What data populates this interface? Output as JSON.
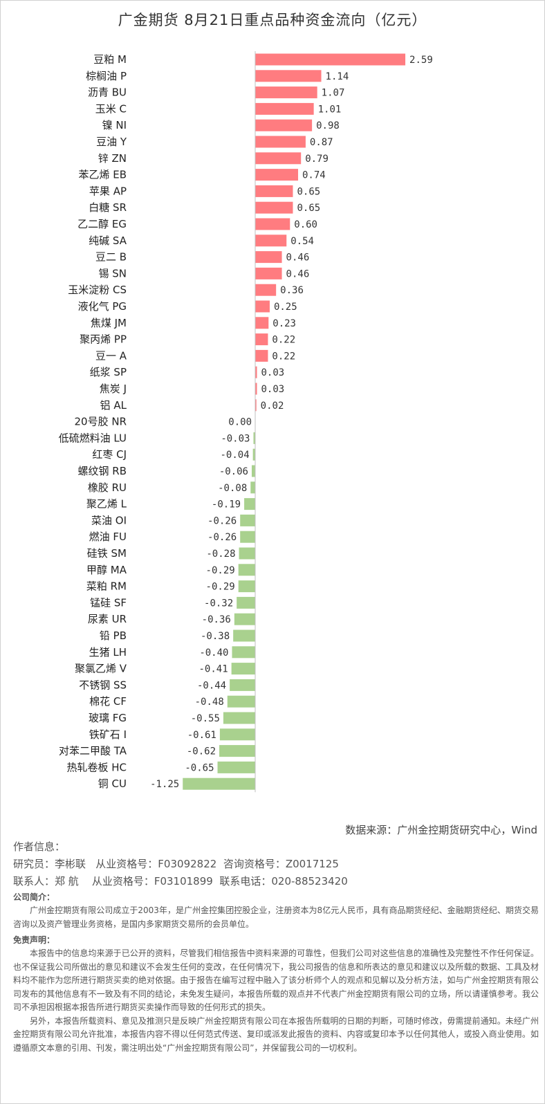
{
  "chart_data": {
    "type": "bar",
    "orientation": "horizontal",
    "title": "广金期货 8月21日重点品种资金流向（亿元）",
    "categories": [
      "豆粕 M",
      "棕榈油 P",
      "沥青 BU",
      "玉米 C",
      "镍 NI",
      "豆油 Y",
      "锌 ZN",
      "苯乙烯 EB",
      "苹果 AP",
      "白糖 SR",
      "乙二醇 EG",
      "纯碱 SA",
      "豆二 B",
      "锡 SN",
      "玉米淀粉 CS",
      "液化气 PG",
      "焦煤 JM",
      "聚丙烯 PP",
      "豆一 A",
      "纸浆 SP",
      "焦炭 J",
      "铝 AL",
      "20号胶 NR",
      "低硫燃料油 LU",
      "红枣 CJ",
      "螺纹钢 RB",
      "橡胶 RU",
      "聚乙烯 L",
      "菜油 OI",
      "燃油 FU",
      "硅铁 SM",
      "甲醇 MA",
      "菜粕 RM",
      "锰硅 SF",
      "尿素 UR",
      "铅 PB",
      "生猪 LH",
      "聚氯乙烯 V",
      "不锈钢 SS",
      "棉花 CF",
      "玻璃 FG",
      "铁矿石 I",
      "对苯二甲酸 TA",
      "热轧卷板 HC",
      "铜 CU"
    ],
    "values": [
      2.59,
      1.14,
      1.07,
      1.01,
      0.98,
      0.87,
      0.79,
      0.74,
      0.65,
      0.65,
      0.6,
      0.54,
      0.46,
      0.46,
      0.36,
      0.25,
      0.23,
      0.22,
      0.22,
      0.03,
      0.03,
      0.02,
      0.0,
      -0.03,
      -0.04,
      -0.06,
      -0.08,
      -0.19,
      -0.26,
      -0.26,
      -0.28,
      -0.29,
      -0.29,
      -0.32,
      -0.36,
      -0.38,
      -0.4,
      -0.41,
      -0.44,
      -0.48,
      -0.55,
      -0.61,
      -0.62,
      -0.65,
      -1.25
    ],
    "colors": {
      "positive": "#ff7c80",
      "negative": "#a9d18e"
    },
    "grid": false
  },
  "source": "数据来源：广州金控期货研究中心，Wind",
  "author": {
    "heading": "作者信息：",
    "line1": "研究员：李彬联   从业资格号：F03092822  咨询资格号：Z0017125",
    "line2": "联系人：郑 航    从业资格号：F03101899  联系电话：020-88523420"
  },
  "company": {
    "heading": "公司简介：",
    "text": "广州金控期货有限公司成立于2003年，是广州金控集团控股企业，注册资本为8亿元人民币，具有商品期货经纪、金融期货经纪、期货交易咨询以及资产管理业务资格，是国内多家期货交易所的会员单位。"
  },
  "disclaimer": {
    "heading": "免责声明：",
    "p1": "本报告中的信息均来源于已公开的资料，尽管我们相信报告中资料来源的可靠性，但我们公司对这些信息的准确性及完整性不作任何保证。也不保证我公司所做出的意见和建议不会发生任何的变改，在任何情况下，我公司报告的信息和所表达的意见和建议以及所载的数据、工具及材料均不能作为您所进行期货买卖的绝对依据。由于报告在编写过程中融入了该分析师个人的观点和见解以及分析方法，如与广州金控期货有限公司发布的其他信息有不一致及有不同的结论，未免发生疑问，本报告所载的观点并不代表广州金控期货有限公司的立场，所以请谨慎参考。我公司不承担因根据本报告所进行期货买卖操作而导致的任何形式的损失。",
    "p2": "另外，本报告所载资料、意见及推测只是反映广州金控期货有限公司在本报告所载明的日期的判断，可随时修改，毋需提前通知。未经广州金控期货有限公司允许批准，本报告内容不得以任何范式传送、复印或派发此报告的资料、内容或复印本予以任何其他人，或投入商业使用。如遵循原文本意的引用、刊发，需注明出处“广州金控期货有限公司”，并保留我公司的一切权利。"
  }
}
